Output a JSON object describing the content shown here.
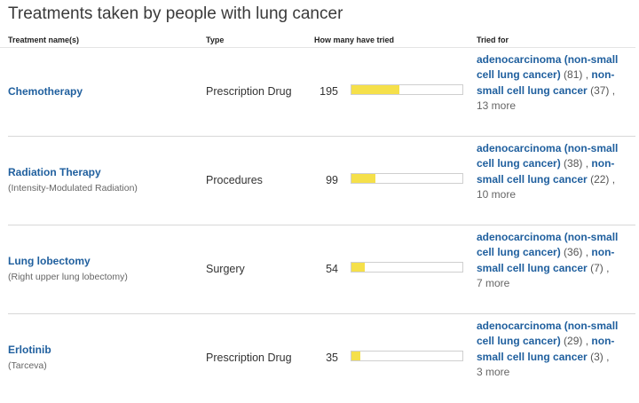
{
  "title": "Treatments taken by people with lung cancer",
  "columns": {
    "name": "Treatment name(s)",
    "type": "Type",
    "tried": "How many have tried",
    "for": "Tried for"
  },
  "max_count": 195,
  "rows": [
    {
      "name": "Chemotherapy",
      "subtitle": "",
      "type": "Prescription Drug",
      "count": 195,
      "cond1": "adenocarcinoma (non-small cell lung cancer)",
      "cond1_count": "(81)",
      "cond2": "non-small cell lung cancer",
      "cond2_count": "(37)",
      "more": "13 more"
    },
    {
      "name": "Radiation Therapy",
      "subtitle": "(Intensity-Modulated Radiation)",
      "type": "Procedures",
      "count": 99,
      "cond1": "adenocarcinoma (non-small cell lung cancer)",
      "cond1_count": "(38)",
      "cond2": "non-small cell lung cancer",
      "cond2_count": "(22)",
      "more": "10 more"
    },
    {
      "name": "Lung lobectomy",
      "subtitle": "(Right upper lung lobectomy)",
      "type": "Surgery",
      "count": 54,
      "cond1": "adenocarcinoma (non-small cell lung cancer)",
      "cond1_count": "(36)",
      "cond2": "non-small cell lung cancer",
      "cond2_count": "(7)",
      "more": "7 more"
    },
    {
      "name": "Erlotinib",
      "subtitle": "(Tarceva)",
      "type": "Prescription Drug",
      "count": 35,
      "cond1": "adenocarcinoma (non-small cell lung cancer)",
      "cond1_count": "(29)",
      "cond2": "non-small cell lung cancer",
      "cond2_count": "(3)",
      "more": "3 more"
    }
  ]
}
